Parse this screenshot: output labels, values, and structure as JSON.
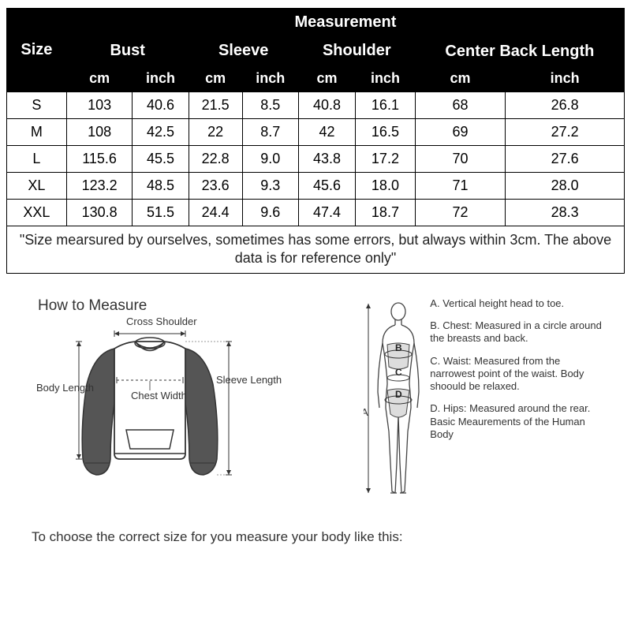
{
  "table": {
    "size_header": "Size",
    "measurement_header": "Measurement",
    "groups": [
      "Bust",
      "Sleeve",
      "Shoulder",
      "Center Back Length"
    ],
    "units": [
      "cm",
      "inch",
      "cm",
      "inch",
      "cm",
      "inch",
      "cm",
      "inch"
    ],
    "rows": [
      [
        "S",
        "103",
        "40.6",
        "21.5",
        "8.5",
        "40.8",
        "16.1",
        "68",
        "26.8"
      ],
      [
        "M",
        "108",
        "42.5",
        "22",
        "8.7",
        "42",
        "16.5",
        "69",
        "27.2"
      ],
      [
        "L",
        "115.6",
        "45.5",
        "22.8",
        "9.0",
        "43.8",
        "17.2",
        "70",
        "27.6"
      ],
      [
        "XL",
        "123.2",
        "48.5",
        "23.6",
        "9.3",
        "45.6",
        "18.0",
        "71",
        "28.0"
      ],
      [
        "XXL",
        "130.8",
        "51.5",
        "24.4",
        "9.6",
        "47.4",
        "18.7",
        "72",
        "28.3"
      ]
    ],
    "note": "\"Size mearsured by ourselves, sometimes has some errors, but always within 3cm. The above data is for reference only\"",
    "style": {
      "header_bg": "#000000",
      "header_fg": "#ffffff",
      "border_color": "#000000",
      "body_bg": "#ffffff",
      "body_fg": "#000000",
      "header_fontsize": 20,
      "subheader_fontsize": 18,
      "cell_fontsize": 18,
      "col_widths_pct": [
        10,
        11.25,
        11.25,
        11.25,
        11.25,
        11.25,
        11.25,
        11.25,
        11.25
      ]
    }
  },
  "howto": {
    "title": "How to Measure",
    "sweater_labels": {
      "cross_shoulder": "Cross Shoulder",
      "body_length": "Body Length",
      "chest_width": "Chest Width",
      "sleeve_length": "Sleeve Length"
    },
    "choose_text": "To choose the correct size for you measure your body like this:",
    "body_labels": {
      "A": "A",
      "B": "B",
      "C": "C",
      "D": "D"
    },
    "body_defs": {
      "A": "A. Vertical height head to toe.",
      "B": "B. Chest: Measured in a circle around the breasts and back.",
      "C": "C. Waist: Measured from the narrowest point of the waist. Body shoould be relaxed.",
      "D": "D. Hips: Measured around the rear. Basic Meaurements of the Human Body"
    },
    "style": {
      "diagram_stroke": "#333333",
      "diagram_fill_dark": "#555555",
      "diagram_fill_light": "#ffffff",
      "label_fontsize": 13,
      "title_fontsize": 19,
      "body_outline_stroke": "#444444",
      "arrow_color": "#333333"
    }
  }
}
